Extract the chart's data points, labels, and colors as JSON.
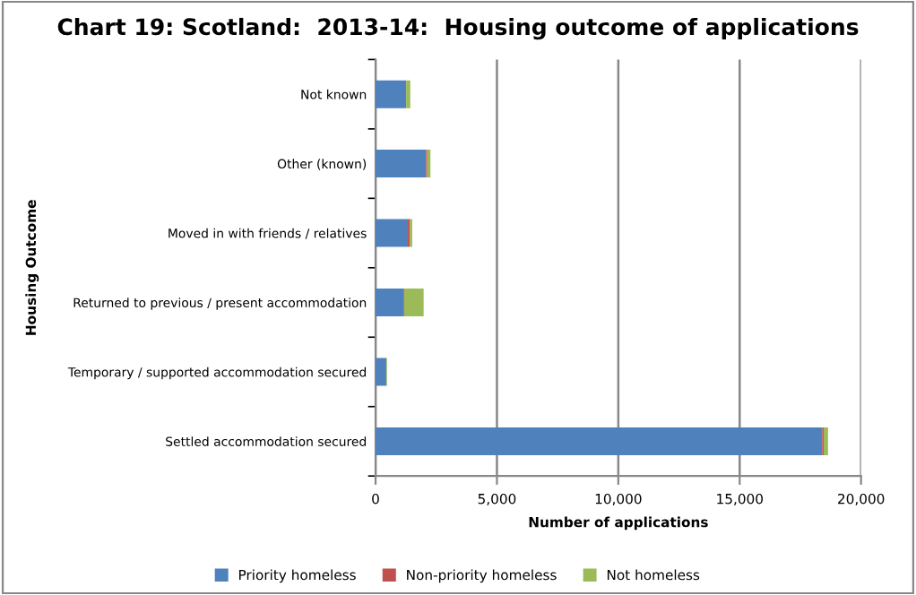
{
  "chart_data": {
    "type": "bar",
    "orientation": "horizontal",
    "stacked": true,
    "title": "Chart 19: Scotland:  2013-14:  Housing outcome of applications",
    "xlabel": "Number of applications",
    "ylabel": "Housing Outcome",
    "categories": [
      "Not known",
      "Other (known)",
      "Moved in with friends / relatives",
      "Returned to previous / present accommodation",
      "Temporary / supported accommodation secured",
      "Settled accommodation secured"
    ],
    "series": [
      {
        "name": "Priority homeless",
        "color": "#4f81bd",
        "values": [
          1220,
          2080,
          1330,
          1150,
          440,
          18400
        ]
      },
      {
        "name": "Non-priority homeless",
        "color": "#c0504d",
        "values": [
          40,
          50,
          80,
          30,
          null,
          60
        ]
      },
      {
        "name": "Not homeless",
        "color": "#9bbb59",
        "values": [
          170,
          130,
          100,
          800,
          30,
          180
        ]
      }
    ],
    "xlim": [
      0,
      20000
    ],
    "xticks": [
      {
        "value": 0,
        "label": "0"
      },
      {
        "value": 5000,
        "label": "5,000"
      },
      {
        "value": 10000,
        "label": "10,000"
      },
      {
        "value": 15000,
        "label": "15,000"
      },
      {
        "value": 20000,
        "label": "20,000"
      }
    ],
    "grid": "x",
    "legend": "bottom"
  }
}
